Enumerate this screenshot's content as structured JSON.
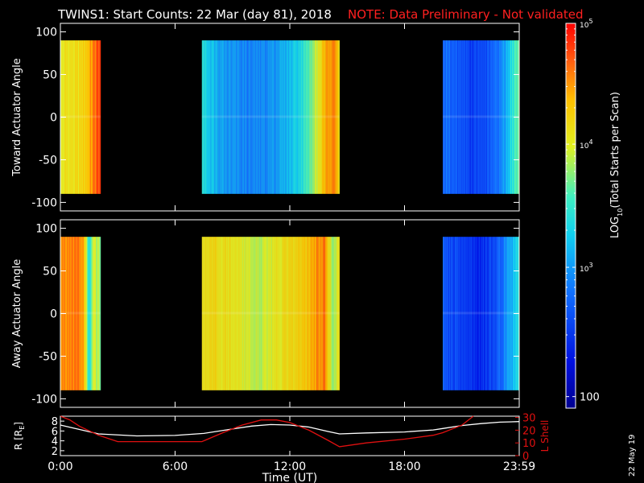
{
  "header": {
    "title": "TWINS1: Start Counts: 22 Mar (day  81), 2018",
    "note": "NOTE: Data Preliminary - Not validated"
  },
  "date_stamp": "22 May 19",
  "colors": {
    "background": "#000000",
    "axis": "#ffffff",
    "note": "#ff2020",
    "r_line": "#ffffff",
    "lshell_line": "#e01010"
  },
  "chart_data": [
    {
      "id": "toward",
      "type": "heatmap",
      "ylabel": "Toward Actuator Angle",
      "ylim": [
        -110,
        110
      ],
      "yticks": [
        -100,
        -50,
        0,
        50,
        100
      ],
      "xlim": [
        0,
        24
      ],
      "data_range_y": [
        -90,
        90
      ],
      "segments": [
        {
          "start": 0.0,
          "end": 2.1,
          "profile": [
            [
              0.0,
              0.68
            ],
            [
              0.3,
              0.72
            ],
            [
              0.9,
              0.72
            ],
            [
              1.4,
              0.78
            ],
            [
              1.8,
              0.88
            ],
            [
              2.0,
              0.93
            ],
            [
              2.1,
              0.9
            ]
          ]
        },
        {
          "start": 7.4,
          "end": 14.6,
          "profile": [
            [
              7.4,
              0.5
            ],
            [
              7.8,
              0.45
            ],
            [
              8.6,
              0.38
            ],
            [
              10.0,
              0.33
            ],
            [
              11.0,
              0.36
            ],
            [
              12.0,
              0.42
            ],
            [
              13.0,
              0.55
            ],
            [
              13.8,
              0.78
            ],
            [
              14.3,
              0.9
            ],
            [
              14.6,
              0.7
            ]
          ]
        },
        {
          "start": 20.0,
          "end": 24.0,
          "profile": [
            [
              20.0,
              0.3
            ],
            [
              20.8,
              0.26
            ],
            [
              21.6,
              0.2
            ],
            [
              22.4,
              0.24
            ],
            [
              23.2,
              0.36
            ],
            [
              23.7,
              0.52
            ],
            [
              24.0,
              0.6
            ]
          ]
        }
      ]
    },
    {
      "id": "away",
      "type": "heatmap",
      "ylabel": "Away Actuator Angle",
      "ylim": [
        -110,
        110
      ],
      "yticks": [
        -100,
        -50,
        0,
        50,
        100
      ],
      "xlim": [
        0,
        24
      ],
      "data_range_y": [
        -90,
        90
      ],
      "segments": [
        {
          "start": 0.0,
          "end": 2.1,
          "profile": [
            [
              0.0,
              0.85
            ],
            [
              0.6,
              0.88
            ],
            [
              1.2,
              0.86
            ],
            [
              1.5,
              0.45
            ],
            [
              1.7,
              0.7
            ],
            [
              2.1,
              0.6
            ]
          ]
        },
        {
          "start": 7.4,
          "end": 14.6,
          "profile": [
            [
              7.4,
              0.72
            ],
            [
              8.0,
              0.74
            ],
            [
              9.0,
              0.7
            ],
            [
              10.5,
              0.66
            ],
            [
              12.0,
              0.72
            ],
            [
              13.0,
              0.8
            ],
            [
              13.8,
              0.88
            ],
            [
              14.3,
              0.6
            ],
            [
              14.6,
              0.75
            ]
          ]
        },
        {
          "start": 20.0,
          "end": 24.0,
          "profile": [
            [
              20.0,
              0.26
            ],
            [
              21.0,
              0.2
            ],
            [
              22.0,
              0.16
            ],
            [
              23.0,
              0.28
            ],
            [
              23.6,
              0.4
            ],
            [
              24.0,
              0.5
            ]
          ]
        }
      ]
    },
    {
      "id": "orbit",
      "type": "line",
      "ylabel": "R [R",
      "ylabel_sub": "E",
      "ylabel_close": "]",
      "ylim": [
        1,
        9
      ],
      "yticks": [
        2,
        4,
        6,
        8
      ],
      "y2label": "L Shell",
      "y2lim": [
        0,
        31
      ],
      "y2ticks": [
        0,
        10,
        20,
        30
      ],
      "xlim": [
        0,
        24
      ],
      "xticks": [
        0,
        6,
        12,
        18,
        24
      ],
      "xticklabels": [
        "0:00",
        "6:00",
        "12:00",
        "18:00",
        "23:59"
      ],
      "xlabel": "Time (UT)",
      "series": [
        {
          "axis": "left",
          "x": [
            0,
            2,
            4,
            6,
            7.5,
            9,
            10,
            11,
            12,
            13,
            14,
            14.6,
            16,
            18,
            19.5,
            20,
            21,
            22,
            23,
            24
          ],
          "y": [
            7.2,
            5.4,
            5.0,
            5.1,
            5.5,
            6.4,
            7.0,
            7.3,
            7.2,
            6.8,
            5.9,
            5.4,
            5.6,
            5.8,
            6.2,
            6.5,
            7.1,
            7.5,
            7.8,
            7.9
          ]
        },
        {
          "axis": "right",
          "x": [
            0,
            0.5,
            1,
            2,
            3,
            5,
            7.4,
            8.5,
            9.5,
            10.5,
            11.3,
            12,
            13,
            14,
            14.6,
            16,
            18,
            19.5,
            20,
            21,
            21.6
          ],
          "y": [
            31,
            28,
            23,
            16,
            11,
            11,
            11,
            18,
            24,
            28,
            28,
            26,
            20,
            12,
            7,
            10,
            13,
            16,
            18,
            24,
            31
          ]
        }
      ]
    }
  ],
  "colorbar": {
    "label_prefix": "LOG",
    "label_sub": "10",
    "label_suffix": "(Total Starts per Scan)",
    "ticks": [
      {
        "base": "10",
        "exp": "5",
        "frac": 0.0
      },
      {
        "base": "10",
        "exp": "4",
        "frac": 0.314
      },
      {
        "base": "10",
        "exp": "3",
        "frac": 0.634
      },
      {
        "base": "100",
        "exp": "",
        "frac": 0.97
      }
    ]
  }
}
